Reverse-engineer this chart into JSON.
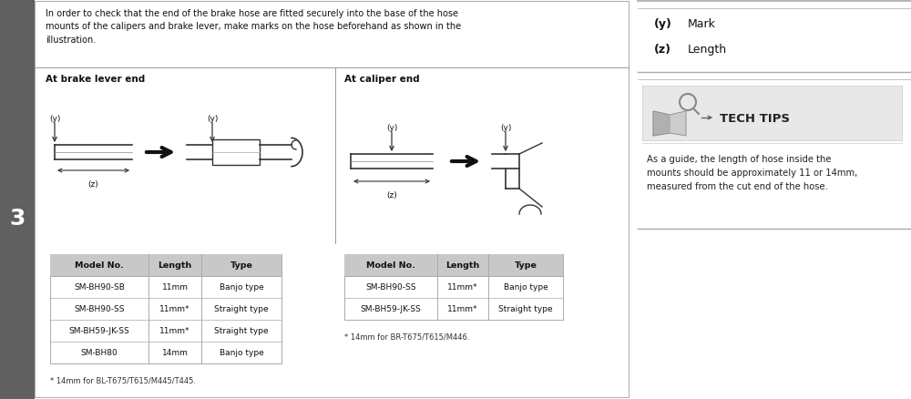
{
  "bg_color": "#ffffff",
  "sidebar_color": "#606060",
  "section_num": "3",
  "header_text": "In order to check that the end of the brake hose are fitted securely into the base of the hose\nmounts of the calipers and brake lever, make marks on the hose beforehand as shown in the\nillustration.",
  "brake_lever_title": "At brake lever end",
  "caliper_title": "At caliper end",
  "table1_headers": [
    "Model No.",
    "Length",
    "Type"
  ],
  "table1_rows": [
    [
      "SM-BH90-SB",
      "11mm",
      "Banjo type"
    ],
    [
      "SM-BH90-SS",
      "11mm*",
      "Straight type"
    ],
    [
      "SM-BH59-JK-SS",
      "11mm*",
      "Straight type"
    ],
    [
      "SM-BH80",
      "14mm",
      "Banjo type"
    ]
  ],
  "table1_footnote": "* 14mm for BL-T675/T615/M445/T445.",
  "table2_headers": [
    "Model No.",
    "Length",
    "Type"
  ],
  "table2_rows": [
    [
      "SM-BH90-SS",
      "11mm*",
      "Banjo type"
    ],
    [
      "SM-BH59-JK-SS",
      "11mm*",
      "Straight type"
    ]
  ],
  "table2_footnote": "* 14mm for BR-T675/T615/M446.",
  "header_bg": "#c8c8c8",
  "table_border": "#aaaaaa",
  "divider_color": "#999999",
  "tech_tips_bg": "#e8e8e8",
  "tech_tips_title": "TECH TIPS",
  "tech_tips_body": "As a guide, the length of hose inside the\nmounts should be approximately 11 or 14mm,\nmeasured from the cut end of the hose.",
  "right_divider": "#aaaaaa"
}
